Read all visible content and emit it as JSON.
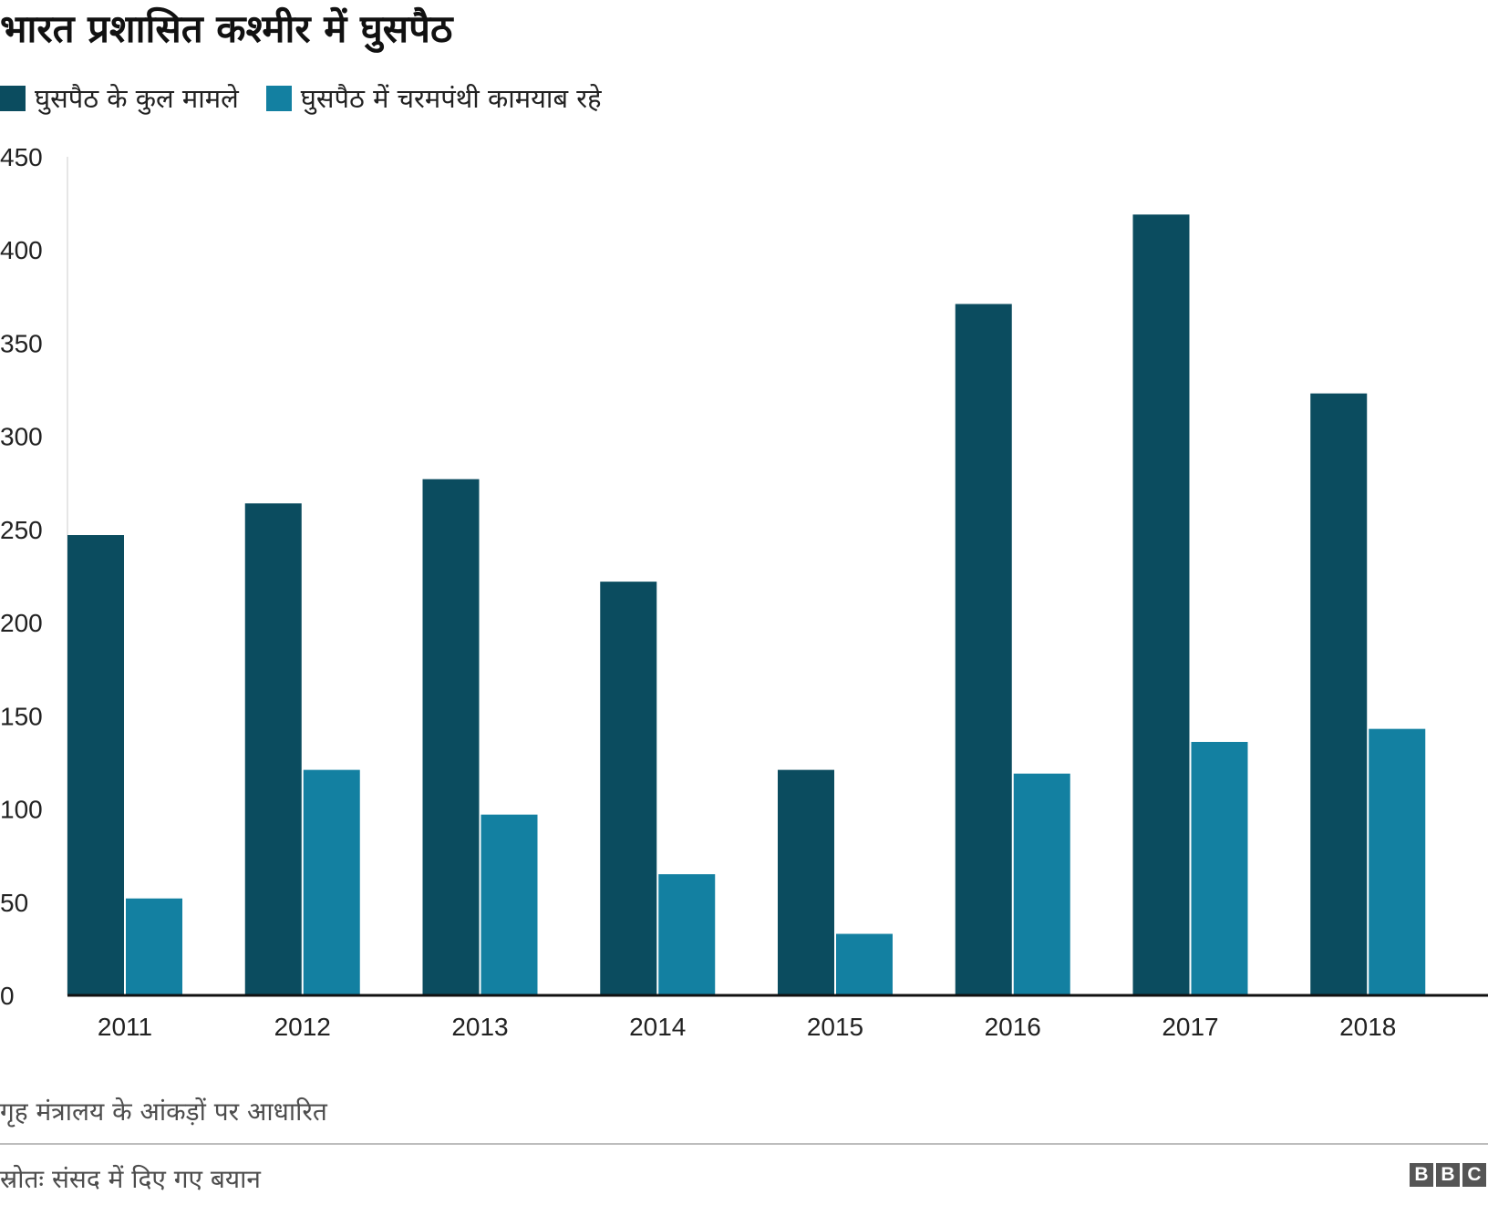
{
  "title": "भारत प्रशासित कश्मीर में घुसपैठ",
  "footnote": "गृह मंत्रालय के आंकड़ों पर आधारित",
  "source": "स्रोतः संसद में दिए गए बयान",
  "logo": [
    "B",
    "B",
    "C"
  ],
  "chart_data": {
    "type": "bar",
    "categories": [
      "2011",
      "2012",
      "2013",
      "2014",
      "2015",
      "2016",
      "2017",
      "2018"
    ],
    "series": [
      {
        "name": "घुसपैठ के कुल मामले",
        "color": "#0b4c5f",
        "values": [
          247,
          264,
          277,
          222,
          121,
          371,
          419,
          323
        ]
      },
      {
        "name": "घुसपैठ में चरमपंथी कामयाब रहे",
        "color": "#1380a1",
        "values": [
          52,
          121,
          97,
          65,
          33,
          119,
          136,
          143
        ]
      }
    ],
    "ylim": [
      0,
      450
    ],
    "yticks": [
      0,
      50,
      100,
      150,
      200,
      250,
      300,
      350,
      400,
      450
    ],
    "grid": false,
    "legend_position": "top-left"
  }
}
